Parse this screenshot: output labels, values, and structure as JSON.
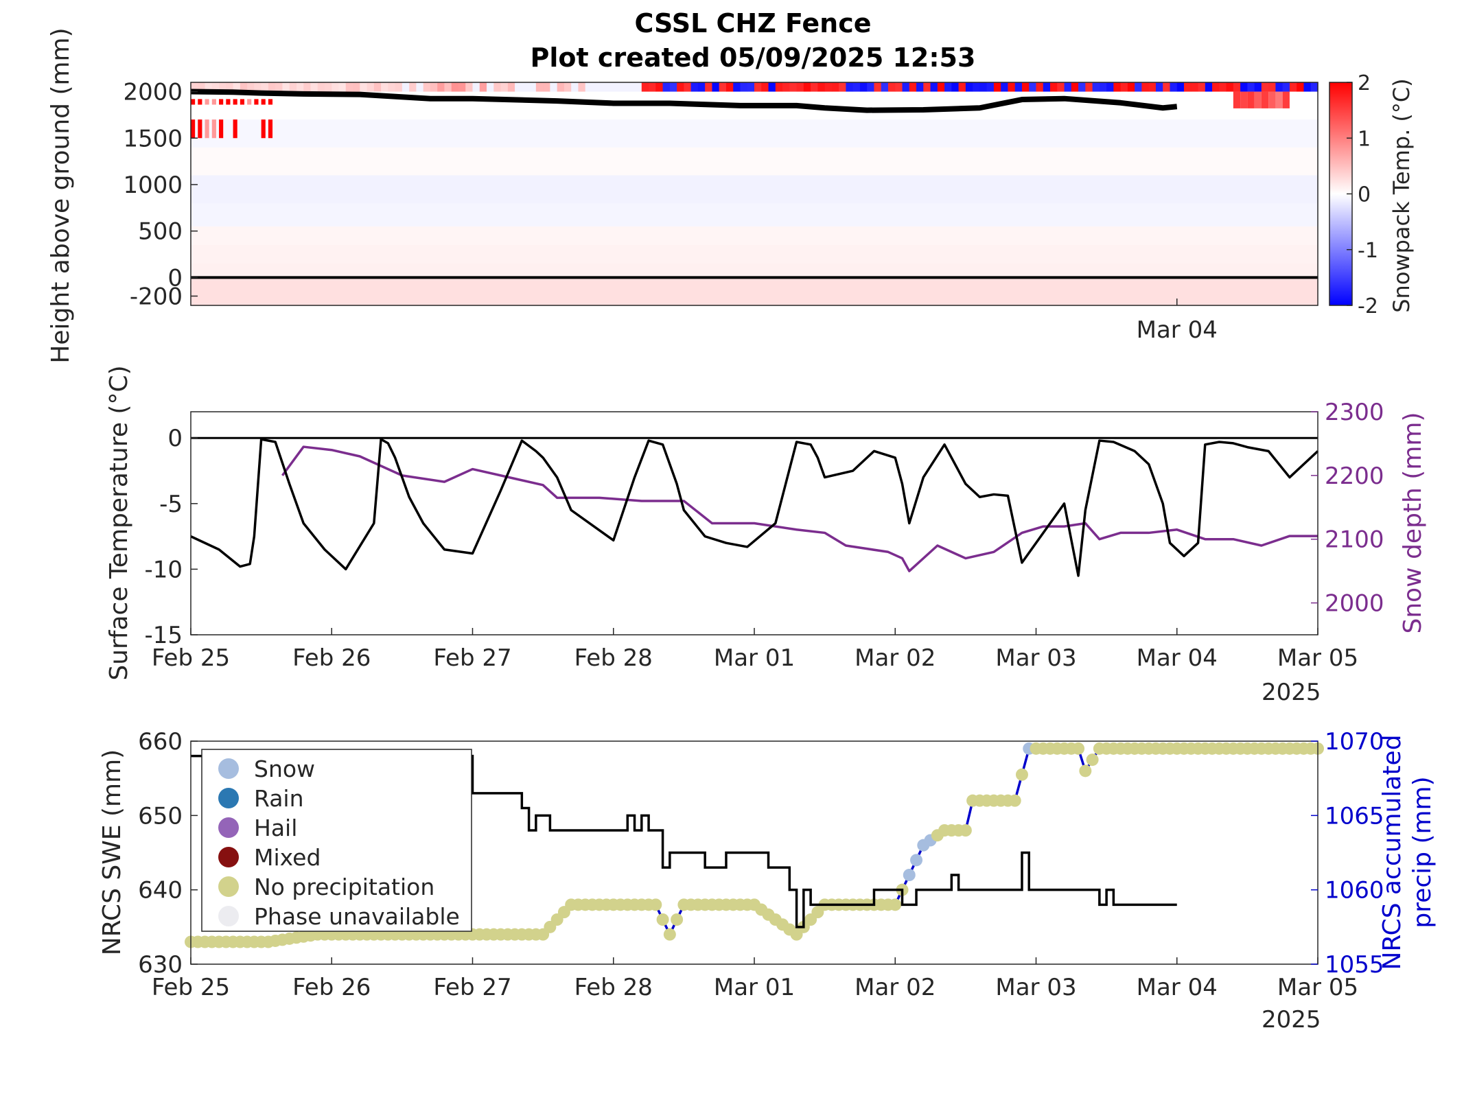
{
  "title_line1": "CSSL CHZ Fence",
  "title_line2": "Plot created 05/09/2025 12:53",
  "colors": {
    "warm": "#ff0000",
    "cold": "#0000ff",
    "surface_temp": "#000000",
    "snow_depth": "#7b2d8e",
    "swe": "#000000",
    "precip": "#0000cc",
    "no_precip": "#d2d28c",
    "snow_marker": "#a6bddf"
  },
  "chart_data": [
    {
      "id": "snowpack",
      "type": "heatmap",
      "ylabel": "Height above ground (mm)",
      "colorbar_label": "Snowpack Temp. (°C)",
      "color_range": [
        -2,
        2
      ],
      "colorbar_ticks": [
        "2",
        "1",
        "0",
        "-1",
        "-2"
      ],
      "y_ticks": [
        "2000",
        "1500",
        "1000",
        "500",
        "0",
        "-200"
      ],
      "ylim": [
        -300,
        2100
      ],
      "x_tick_labels": [
        "Mar 04"
      ],
      "snow_surface_line": {
        "x_days": [
          0,
          0.3,
          0.5,
          0.8,
          1.2,
          1.7,
          2.0,
          2.6,
          3.0,
          3.4,
          3.6,
          3.9,
          4.3,
          4.5,
          4.8,
          5.2,
          5.6,
          5.9,
          6.2,
          6.6,
          6.9,
          7.0
        ],
        "height_mm": [
          2000,
          1995,
          1985,
          1975,
          1970,
          1925,
          1925,
          1900,
          1875,
          1875,
          1865,
          1850,
          1850,
          1825,
          1800,
          1805,
          1825,
          1915,
          1925,
          1880,
          1825,
          1840
        ]
      },
      "zero_line_mm": 0,
      "grid": false
    },
    {
      "id": "surface",
      "type": "line",
      "ylabel": "Surface Temperature (°C)",
      "y2label": "Snow depth (mm)",
      "x_tick_labels": [
        "Feb 25",
        "Feb 26",
        "Feb 27",
        "Feb 28",
        "Mar 01",
        "Mar 02",
        "Mar 03",
        "Mar 04",
        "Mar 05"
      ],
      "year_label": "2025",
      "y_ticks": [
        "0",
        "-5",
        "-10",
        "-15"
      ],
      "y2_ticks": [
        "2300",
        "2200",
        "2100",
        "2000"
      ],
      "ylim": [
        -15,
        2
      ],
      "y2lim": [
        1950,
        2300
      ],
      "series": [
        {
          "axis": "left",
          "x_days": [
            0,
            0.2,
            0.35,
            0.42,
            0.45,
            0.5,
            0.6,
            0.7,
            0.8,
            0.95,
            1.1,
            1.3,
            1.35,
            1.4,
            1.45,
            1.55,
            1.65,
            1.8,
            2.0,
            2.2,
            2.35,
            2.45,
            2.5,
            2.6,
            2.7,
            3.0,
            3.15,
            3.25,
            3.35,
            3.45,
            3.5,
            3.65,
            3.8,
            3.95,
            4.15,
            4.3,
            4.4,
            4.45,
            4.5,
            4.7,
            4.85,
            5.0,
            5.05,
            5.1,
            5.2,
            5.35,
            5.45,
            5.5,
            5.6,
            5.7,
            5.8,
            5.9,
            6.1,
            6.2,
            6.3,
            6.35,
            6.45,
            6.55,
            6.7,
            6.8,
            6.9,
            6.95,
            7.05,
            7.15,
            7.2,
            7.3,
            7.4,
            7.5,
            7.65,
            7.8,
            8.0
          ],
          "y": [
            -7.5,
            -8.5,
            -9.8,
            -9.6,
            -7.5,
            -0.1,
            -0.3,
            -3.5,
            -6.5,
            -8.5,
            -10.0,
            -6.5,
            -0.1,
            -0.4,
            -1.5,
            -4.5,
            -6.5,
            -8.5,
            -8.8,
            -4.0,
            -0.2,
            -1.0,
            -1.5,
            -3.0,
            -5.5,
            -7.8,
            -3.0,
            -0.2,
            -0.5,
            -3.5,
            -5.5,
            -7.5,
            -8.0,
            -8.3,
            -6.5,
            -0.3,
            -0.5,
            -1.5,
            -3.0,
            -2.5,
            -1.0,
            -1.5,
            -3.5,
            -6.5,
            -3.0,
            -0.5,
            -2.5,
            -3.5,
            -4.5,
            -4.3,
            -4.4,
            -9.5,
            -6.5,
            -5.0,
            -10.5,
            -5.5,
            -0.2,
            -0.3,
            -1.0,
            -2.0,
            -5.0,
            -8.0,
            -9.0,
            -8.0,
            -0.5,
            -0.3,
            -0.4,
            -0.7,
            -1.0,
            -3.0,
            -1.0
          ]
        },
        {
          "axis": "right",
          "x_days": [
            0.65,
            0.8,
            1.0,
            1.2,
            1.5,
            1.8,
            2.0,
            2.3,
            2.5,
            2.6,
            2.9,
            3.2,
            3.4,
            3.5,
            3.7,
            4.0,
            4.3,
            4.5,
            4.65,
            4.8,
            4.95,
            5.05,
            5.1,
            5.3,
            5.5,
            5.7,
            5.9,
            6.05,
            6.2,
            6.35,
            6.45,
            6.6,
            6.8,
            7.0,
            7.2,
            7.4,
            7.6,
            7.8,
            8.0
          ],
          "y": [
            2200,
            2245,
            2240,
            2230,
            2200,
            2190,
            2210,
            2195,
            2185,
            2165,
            2165,
            2160,
            2160,
            2160,
            2125,
            2125,
            2115,
            2110,
            2090,
            2085,
            2080,
            2070,
            2050,
            2090,
            2070,
            2080,
            2110,
            2120,
            2120,
            2125,
            2100,
            2110,
            2110,
            2115,
            2100,
            2100,
            2090,
            2105,
            2105
          ]
        }
      ],
      "zero_line": 0,
      "grid": false
    },
    {
      "id": "nrcs",
      "type": "line",
      "ylabel": "NRCS SWE (mm)",
      "y2label": "NRCS accumulated precip (mm)",
      "x_tick_labels": [
        "Feb 25",
        "Feb 26",
        "Feb 27",
        "Feb 28",
        "Mar 01",
        "Mar 02",
        "Mar 03",
        "Mar 04",
        "Mar 05"
      ],
      "year_label": "2025",
      "y_ticks": [
        "660",
        "650",
        "640",
        "630"
      ],
      "y2_ticks": [
        "1070",
        "1065",
        "1060",
        "1055"
      ],
      "ylim": [
        630,
        660
      ],
      "y2lim": [
        1055,
        1070
      ],
      "legend": [
        "Snow",
        "Rain",
        "Hail",
        "Mixed",
        "No precipitation",
        "Phase unavailable"
      ],
      "legend_colors": [
        "#a6bddf",
        "#2b78b2",
        "#9464b8",
        "#861010",
        "#d2d28c",
        "#ececf0"
      ],
      "legend_position": "top-left",
      "swe": {
        "x_days": [
          0,
          2.0,
          2.3,
          2.35,
          2.4,
          2.45,
          2.5,
          2.55,
          2.6,
          2.65,
          2.7,
          3.0,
          3.1,
          3.15,
          3.2,
          3.25,
          3.3,
          3.35,
          3.4,
          3.45,
          3.6,
          3.65,
          3.8,
          4.0,
          4.1,
          4.15,
          4.25,
          4.3,
          4.35,
          4.4,
          4.6,
          4.8,
          4.85,
          5.0,
          5.05,
          5.15,
          5.35,
          5.4,
          5.45,
          5.55,
          5.6,
          5.7,
          5.9,
          5.95,
          6.0,
          6.4,
          6.45,
          6.5,
          6.55,
          6.6,
          6.7,
          6.75,
          7.0
        ],
        "y": [
          658,
          653,
          653,
          651,
          648,
          650,
          650,
          648,
          648,
          648,
          648,
          648,
          650,
          648,
          650,
          648,
          648,
          643,
          645,
          645,
          645,
          643,
          645,
          645,
          643,
          643,
          640,
          635,
          640,
          638,
          638,
          638,
          640,
          640,
          638,
          640,
          640,
          642,
          640,
          640,
          640,
          640,
          645,
          640,
          640,
          640,
          638,
          640,
          638,
          638,
          638,
          638,
          638
        ]
      },
      "precip": {
        "x_days": [
          0,
          0.55,
          0.9,
          2.0,
          2.5,
          2.6,
          2.7,
          3.0,
          3.3,
          3.4,
          3.5,
          3.9,
          4.0,
          4.3,
          4.5,
          4.55,
          5.0,
          5.1,
          5.2,
          5.35,
          5.5,
          5.55,
          5.85,
          5.95,
          6.0,
          6.3,
          6.35,
          6.45,
          7.0,
          8.0
        ],
        "y": [
          1056.5,
          1056.5,
          1057,
          1057,
          1057,
          1058,
          1059,
          1059,
          1059,
          1057,
          1059,
          1059,
          1059,
          1057,
          1059,
          1059,
          1059,
          1061,
          1063,
          1064,
          1064,
          1066,
          1066,
          1069.5,
          1069.5,
          1069.5,
          1068,
          1069.5,
          1069.5,
          1069.5
        ]
      },
      "grid": false
    }
  ]
}
